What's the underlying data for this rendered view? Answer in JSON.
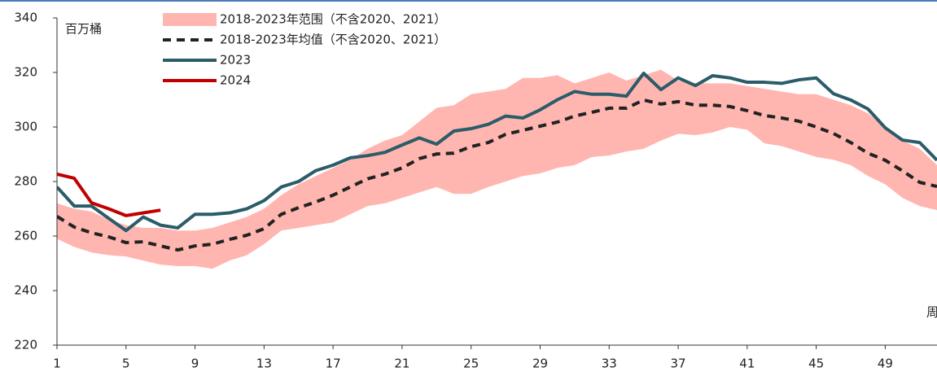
{
  "chart_data": {
    "type": "line",
    "unit_label": "百万桶",
    "x_label": "周",
    "x": [
      1,
      2,
      3,
      4,
      5,
      6,
      7,
      8,
      9,
      10,
      11,
      12,
      13,
      14,
      15,
      16,
      17,
      18,
      19,
      20,
      21,
      22,
      23,
      24,
      25,
      26,
      27,
      28,
      29,
      30,
      31,
      32,
      33,
      34,
      35,
      36,
      37,
      38,
      39,
      40,
      41,
      42,
      43,
      44,
      45,
      46,
      47,
      48,
      49,
      50,
      51,
      52
    ],
    "xlim": [
      1,
      52
    ],
    "xticks": [
      1,
      5,
      9,
      13,
      17,
      21,
      25,
      29,
      33,
      37,
      41,
      45,
      49
    ],
    "ylim": [
      220,
      340
    ],
    "yticks": [
      220,
      240,
      260,
      280,
      300,
      320,
      340
    ],
    "legend": "upper left",
    "series": [
      {
        "name": "2018-2023年范围（不含2020、2021）",
        "kind": "band",
        "color": "#ffb6b0",
        "lower": [
          259,
          256,
          254,
          253,
          252.5,
          251,
          249.5,
          249,
          249,
          248,
          251,
          253,
          257,
          262,
          263,
          264,
          265,
          268,
          271,
          272,
          274,
          276,
          278,
          275.5,
          275.5,
          278,
          280,
          282,
          283,
          285,
          286,
          289,
          289.5,
          291,
          292,
          295,
          297.5,
          297,
          298,
          300,
          299,
          294,
          293,
          291,
          289,
          288,
          286,
          282,
          279,
          274,
          271,
          269.5
        ],
        "upper": [
          272,
          270,
          269,
          266,
          264,
          263,
          263,
          262,
          262,
          263,
          265,
          267,
          270,
          275,
          279,
          282,
          285,
          288,
          292,
          295,
          297,
          302,
          307,
          308,
          312,
          313,
          314,
          318,
          318,
          319,
          316,
          318,
          320,
          317,
          319,
          321,
          317,
          316,
          316,
          316,
          315,
          314,
          313,
          312,
          312,
          310,
          308,
          305,
          300,
          295,
          292,
          286
        ]
      },
      {
        "name": "2018-2023年均值（不含2020、2021）",
        "kind": "dashed",
        "color": "#222222",
        "values": [
          267.2,
          263.3,
          261.2,
          259.7,
          257.6,
          257.9,
          256.4,
          254.9,
          256.4,
          257,
          258.8,
          260.3,
          262.7,
          268,
          270.4,
          272.5,
          275,
          278,
          281,
          282.7,
          285,
          288.4,
          290.1,
          290.4,
          292.8,
          294.3,
          297.3,
          298.8,
          300.3,
          301.8,
          304,
          305.4,
          306.9,
          306.9,
          309.9,
          308.4,
          309.3,
          308,
          308,
          307.5,
          306,
          304.2,
          303.3,
          302.1,
          300,
          297.6,
          294.3,
          290.4,
          287.8,
          283.9,
          279.7,
          278.2
        ]
      },
      {
        "name": "2023",
        "kind": "line",
        "color": "#2b5c69",
        "values": [
          278,
          271,
          271,
          266.5,
          262,
          267,
          264,
          263,
          268,
          268,
          268.5,
          270,
          273,
          278,
          280,
          284,
          286,
          288.7,
          289.5,
          290.7,
          293.4,
          296,
          293.7,
          298.5,
          299.4,
          301,
          304,
          303.3,
          306.3,
          310,
          313,
          312,
          312,
          311.3,
          319.7,
          313.7,
          318,
          315.2,
          318.8,
          318,
          316.4,
          316.4,
          316,
          317.3,
          318,
          312.2,
          309.9,
          306.6,
          299.7,
          295.2,
          294.3,
          287.8
        ]
      },
      {
        "name": "2024",
        "kind": "line",
        "color": "#c00000",
        "values": [
          282.7,
          281.2,
          272.2,
          270,
          267.5,
          268.5,
          269.5,
          null,
          null,
          null,
          null,
          null,
          null,
          null,
          null,
          null,
          null,
          null,
          null,
          null,
          null,
          null,
          null,
          null,
          null,
          null,
          null,
          null,
          null,
          null,
          null,
          null,
          null,
          null,
          null,
          null,
          null,
          null,
          null,
          null,
          null,
          null,
          null,
          null,
          null,
          null,
          null,
          null,
          null,
          null,
          null,
          null
        ]
      }
    ]
  }
}
